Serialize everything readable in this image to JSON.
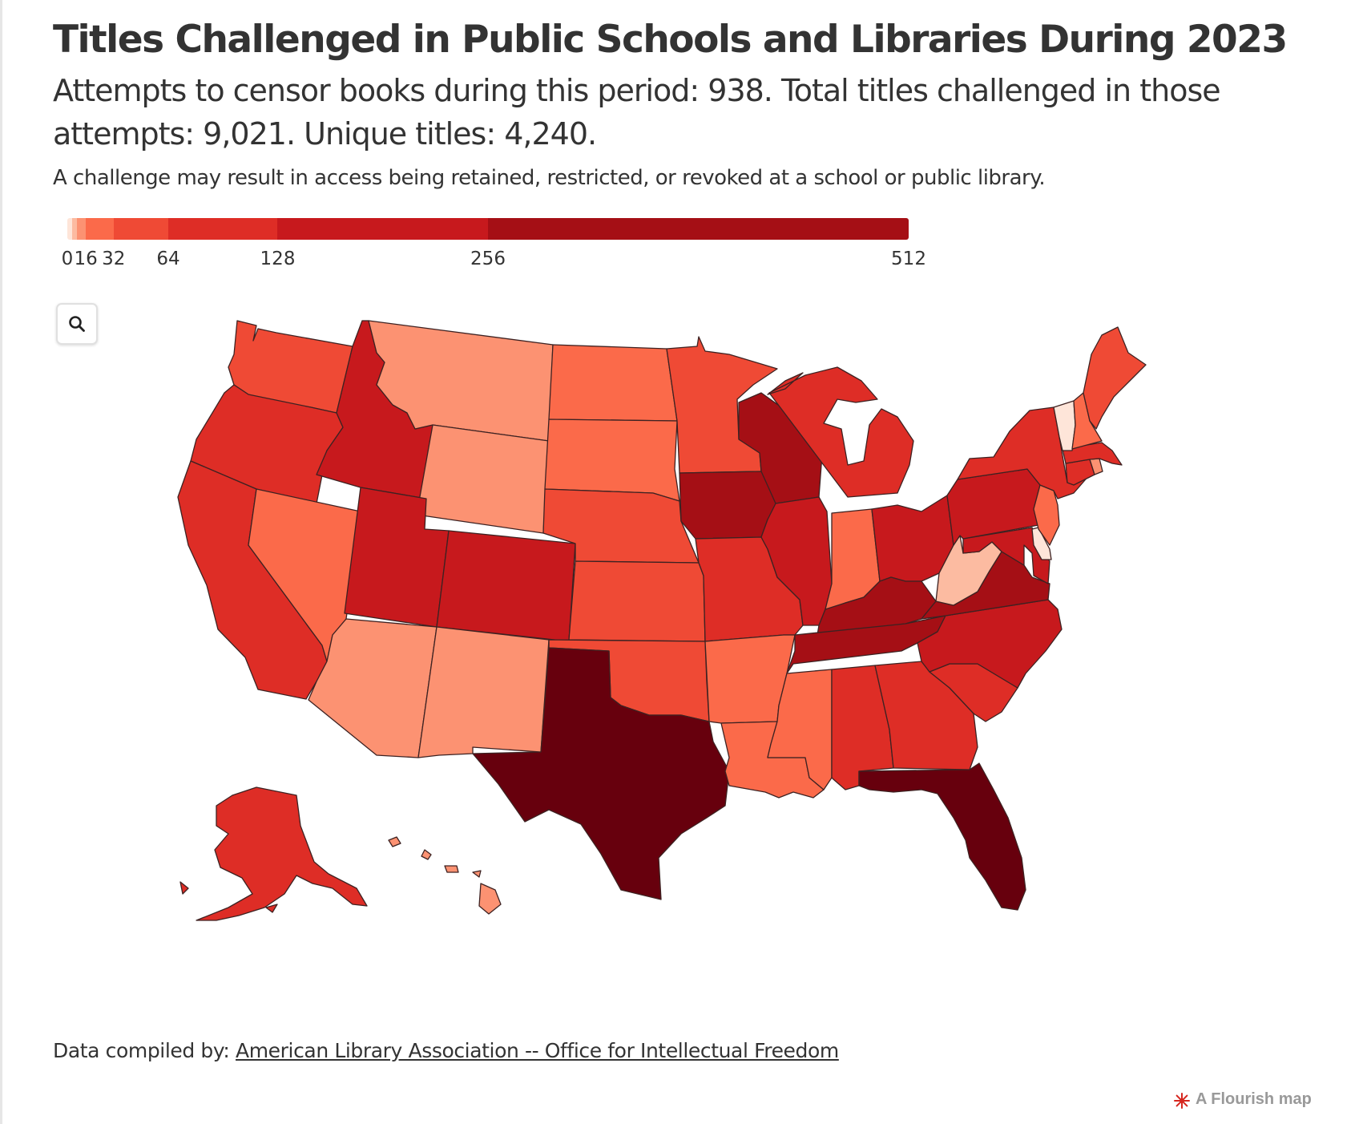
{
  "header": {
    "title": "Titles Challenged in Public Schools and Libraries During 2023",
    "subtitle": "Attempts to censor books during this period: 938. Total titles challenged in those attempts: 9,021. Unique titles: 4,240.",
    "note": "A challenge may result in access being retained, restricted, or revoked at a school or public library."
  },
  "legend": {
    "ticks": [
      {
        "label": "0",
        "value": 0
      },
      {
        "label": "16",
        "value": 16
      },
      {
        "label": "32",
        "value": 32
      },
      {
        "label": "64",
        "value": 64
      },
      {
        "label": "128",
        "value": 128
      },
      {
        "label": "256",
        "value": 256
      },
      {
        "label": "512",
        "value": 512
      }
    ],
    "bins": [
      {
        "from": 0,
        "to": 4,
        "color": "#fee5d9"
      },
      {
        "from": 4,
        "to": 8,
        "color": "#fcbba1"
      },
      {
        "from": 8,
        "to": 16,
        "color": "#fc9272"
      },
      {
        "from": 16,
        "to": 32,
        "color": "#fb6a4a"
      },
      {
        "from": 32,
        "to": 64,
        "color": "#ef4a35"
      },
      {
        "from": 64,
        "to": 128,
        "color": "#de2d26"
      },
      {
        "from": 128,
        "to": 256,
        "color": "#c7191d"
      },
      {
        "from": 256,
        "to": 512,
        "color": "#a50f15"
      },
      {
        "from": 512,
        "to": 100000,
        "color": "#67000d"
      }
    ]
  },
  "zoom": {
    "icon": "search-icon"
  },
  "map": {
    "states": [
      {
        "id": "WA",
        "name": "Washington",
        "bin": 4
      },
      {
        "id": "OR",
        "name": "Oregon",
        "bin": 5
      },
      {
        "id": "CA",
        "name": "California",
        "bin": 5
      },
      {
        "id": "ID",
        "name": "Idaho",
        "bin": 6
      },
      {
        "id": "NV",
        "name": "Nevada",
        "bin": 3
      },
      {
        "id": "MT",
        "name": "Montana",
        "bin": 2
      },
      {
        "id": "WY",
        "name": "Wyoming",
        "bin": 2
      },
      {
        "id": "UT",
        "name": "Utah",
        "bin": 6
      },
      {
        "id": "AZ",
        "name": "Arizona",
        "bin": 2
      },
      {
        "id": "CO",
        "name": "Colorado",
        "bin": 6
      },
      {
        "id": "NM",
        "name": "New Mexico",
        "bin": 2
      },
      {
        "id": "ND",
        "name": "North Dakota",
        "bin": 3
      },
      {
        "id": "SD",
        "name": "South Dakota",
        "bin": 3
      },
      {
        "id": "NE",
        "name": "Nebraska",
        "bin": 4
      },
      {
        "id": "KS",
        "name": "Kansas",
        "bin": 4
      },
      {
        "id": "OK",
        "name": "Oklahoma",
        "bin": 4
      },
      {
        "id": "TX",
        "name": "Texas",
        "bin": 8
      },
      {
        "id": "MN",
        "name": "Minnesota",
        "bin": 4
      },
      {
        "id": "IA",
        "name": "Iowa",
        "bin": 7
      },
      {
        "id": "MO",
        "name": "Missouri",
        "bin": 5
      },
      {
        "id": "AR",
        "name": "Arkansas",
        "bin": 3
      },
      {
        "id": "LA",
        "name": "Louisiana",
        "bin": 3
      },
      {
        "id": "WI",
        "name": "Wisconsin",
        "bin": 7
      },
      {
        "id": "IL",
        "name": "Illinois",
        "bin": 6
      },
      {
        "id": "MI",
        "name": "Michigan",
        "bin": 5
      },
      {
        "id": "IN",
        "name": "Indiana",
        "bin": 3
      },
      {
        "id": "OH",
        "name": "Ohio",
        "bin": 6
      },
      {
        "id": "KY",
        "name": "Kentucky",
        "bin": 7
      },
      {
        "id": "TN",
        "name": "Tennessee",
        "bin": 7
      },
      {
        "id": "MS",
        "name": "Mississippi",
        "bin": 3
      },
      {
        "id": "AL",
        "name": "Alabama",
        "bin": 5
      },
      {
        "id": "GA",
        "name": "Georgia",
        "bin": 5
      },
      {
        "id": "FL",
        "name": "Florida",
        "bin": 8
      },
      {
        "id": "SC",
        "name": "South Carolina",
        "bin": 5
      },
      {
        "id": "NC",
        "name": "North Carolina",
        "bin": 6
      },
      {
        "id": "VA",
        "name": "Virginia",
        "bin": 7
      },
      {
        "id": "WV",
        "name": "West Virginia",
        "bin": 1
      },
      {
        "id": "MD",
        "name": "Maryland",
        "bin": 6
      },
      {
        "id": "DE",
        "name": "Delaware",
        "bin": 0
      },
      {
        "id": "PA",
        "name": "Pennsylvania",
        "bin": 6
      },
      {
        "id": "NJ",
        "name": "New Jersey",
        "bin": 3
      },
      {
        "id": "NY",
        "name": "New York",
        "bin": 5
      },
      {
        "id": "CT",
        "name": "Connecticut",
        "bin": 5
      },
      {
        "id": "RI",
        "name": "Rhode Island",
        "bin": 2
      },
      {
        "id": "MA",
        "name": "Massachusetts",
        "bin": 5
      },
      {
        "id": "VT",
        "name": "Vermont",
        "bin": 0
      },
      {
        "id": "NH",
        "name": "New Hampshire",
        "bin": 3
      },
      {
        "id": "ME",
        "name": "Maine",
        "bin": 4
      },
      {
        "id": "AK",
        "name": "Alaska",
        "bin": 5
      },
      {
        "id": "HI",
        "name": "Hawaii",
        "bin": 2
      }
    ]
  },
  "footer": {
    "source_prefix": "Data compiled by: ",
    "source_link": "American Library Association -- Office for Intellectual Freedom",
    "credit": "A Flourish map"
  }
}
